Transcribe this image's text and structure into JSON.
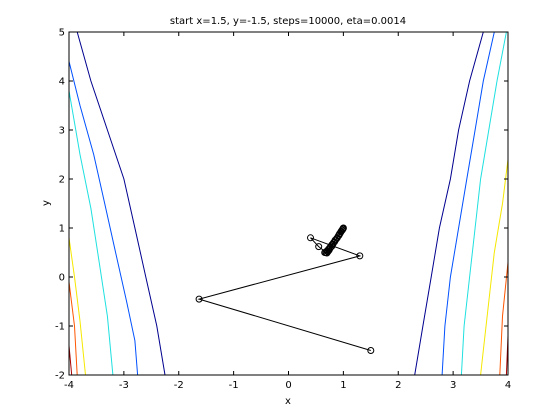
{
  "chart_data": {
    "type": "line",
    "title": "start x=1.5, y=-1.5, steps=10000, eta=0.0014",
    "xlabel": "x",
    "ylabel": "y",
    "xlim": [
      -4,
      4
    ],
    "ylim": [
      -2,
      5
    ],
    "xticks": [
      -4,
      -3,
      -2,
      -1,
      0,
      1,
      2,
      3,
      4
    ],
    "yticks": [
      -2,
      -1,
      0,
      1,
      2,
      3,
      4,
      5
    ],
    "grid": false,
    "contours": [
      {
        "level": 8,
        "color": "#00008f",
        "left": [
          [
            -3.85,
            5
          ],
          [
            -3.6,
            4
          ],
          [
            -3.3,
            3
          ],
          [
            -3.0,
            2
          ],
          [
            -2.8,
            1
          ],
          [
            -2.6,
            0
          ],
          [
            -2.4,
            -1
          ],
          [
            -2.25,
            -2
          ]
        ],
        "right": [
          [
            3.55,
            5
          ],
          [
            3.3,
            4
          ],
          [
            3.1,
            3
          ],
          [
            2.95,
            2
          ],
          [
            2.75,
            1
          ],
          [
            2.6,
            0
          ],
          [
            2.45,
            -1
          ],
          [
            2.3,
            -2
          ]
        ]
      },
      {
        "level": 16,
        "color": "#0050ff",
        "left": [
          [
            -4.0,
            4.4
          ],
          [
            -3.8,
            3.5
          ],
          [
            -3.55,
            2.5
          ],
          [
            -3.35,
            1.5
          ],
          [
            -3.15,
            0.5
          ],
          [
            -2.95,
            -0.5
          ],
          [
            -2.8,
            -1.3
          ],
          [
            -2.75,
            -2
          ]
        ],
        "right": [
          [
            3.75,
            5
          ],
          [
            3.55,
            4
          ],
          [
            3.4,
            3
          ],
          [
            3.25,
            2
          ],
          [
            3.1,
            1
          ],
          [
            2.95,
            0
          ],
          [
            2.85,
            -1
          ],
          [
            2.8,
            -2
          ]
        ]
      },
      {
        "level": 24,
        "color": "#1fe0e0",
        "left": [
          [
            -4.0,
            3.8
          ],
          [
            -3.8,
            2.5
          ],
          [
            -3.6,
            1.4
          ],
          [
            -3.45,
            0.3
          ],
          [
            -3.3,
            -0.8
          ],
          [
            -3.2,
            -2
          ]
        ],
        "right": [
          [
            3.97,
            5
          ],
          [
            3.8,
            4
          ],
          [
            3.65,
            3
          ],
          [
            3.5,
            2
          ],
          [
            3.4,
            1
          ],
          [
            3.3,
            0
          ],
          [
            3.2,
            -1
          ],
          [
            3.15,
            -2
          ]
        ]
      },
      {
        "level": 32,
        "color": "#f5e800",
        "left": [
          [
            -4.0,
            0.8
          ],
          [
            -3.9,
            0.0
          ],
          [
            -3.8,
            -0.9
          ],
          [
            -3.7,
            -2
          ]
        ],
        "right": [
          [
            4.0,
            2.4
          ],
          [
            3.9,
            1.5
          ],
          [
            3.75,
            0.5
          ],
          [
            3.65,
            -0.5
          ],
          [
            3.55,
            -1.5
          ],
          [
            3.5,
            -2
          ]
        ]
      },
      {
        "level": 40,
        "color": "#ff5500",
        "left": [
          [
            -4.0,
            -0.1
          ],
          [
            -3.9,
            -1.0
          ],
          [
            -3.85,
            -2
          ]
        ],
        "right": [
          [
            4.0,
            0.3
          ],
          [
            3.9,
            -0.8
          ],
          [
            3.85,
            -2
          ]
        ]
      },
      {
        "level": 48,
        "color": "#aa0000",
        "left": [
          [
            -4.0,
            -1.4
          ],
          [
            -3.95,
            -2
          ]
        ],
        "right": [
          [
            4.0,
            -1.2
          ],
          [
            3.97,
            -2
          ]
        ]
      }
    ],
    "path": {
      "color": "#000000",
      "marker": "circle",
      "points": [
        [
          1.5,
          -1.5
        ],
        [
          -1.63,
          -0.45
        ],
        [
          1.3,
          0.43
        ],
        [
          0.4,
          0.8
        ],
        [
          0.55,
          0.62
        ],
        [
          0.7,
          0.49
        ],
        [
          0.66,
          0.5
        ],
        [
          0.72,
          0.52
        ],
        [
          0.68,
          0.5
        ],
        [
          0.74,
          0.55
        ],
        [
          0.7,
          0.53
        ],
        [
          0.76,
          0.59
        ],
        [
          0.73,
          0.57
        ],
        [
          0.79,
          0.63
        ],
        [
          0.76,
          0.61
        ],
        [
          0.81,
          0.67
        ],
        [
          0.79,
          0.66
        ],
        [
          0.84,
          0.72
        ],
        [
          0.82,
          0.7
        ],
        [
          0.86,
          0.76
        ],
        [
          0.85,
          0.75
        ],
        [
          0.89,
          0.8
        ],
        [
          0.88,
          0.79
        ],
        [
          0.92,
          0.85
        ],
        [
          0.91,
          0.84
        ],
        [
          0.94,
          0.89
        ],
        [
          0.93,
          0.88
        ],
        [
          0.96,
          0.93
        ],
        [
          0.955,
          0.92
        ],
        [
          0.98,
          0.96
        ],
        [
          0.975,
          0.955
        ],
        [
          0.99,
          0.98
        ],
        [
          0.995,
          0.99
        ],
        [
          1.0,
          1.0
        ]
      ]
    }
  }
}
